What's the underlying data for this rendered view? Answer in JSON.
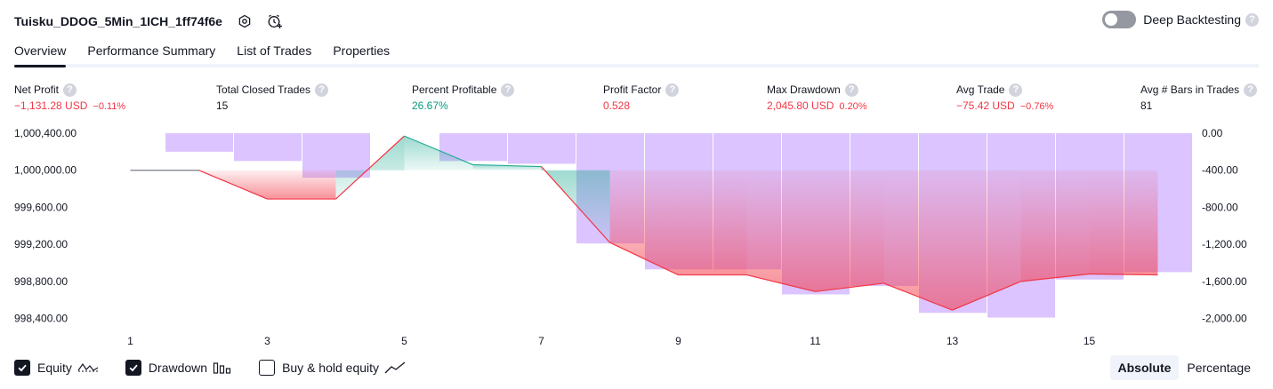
{
  "header": {
    "strategy_name": "Tuisku_DDOG_5Min_1ICH_1ff74f6e",
    "settings_icon": "gear-icon",
    "alert_icon": "alarm-clock-plus-icon"
  },
  "deep_backtesting": {
    "label": "Deep Backtesting",
    "enabled": false
  },
  "tabs": [
    {
      "label": "Overview",
      "active": true
    },
    {
      "label": "Performance Summary",
      "active": false
    },
    {
      "label": "List of Trades",
      "active": false
    },
    {
      "label": "Properties",
      "active": false
    }
  ],
  "metrics": [
    {
      "label": "Net Profit",
      "value": "−1,131.28 USD",
      "pct": "−0.11%",
      "color": "#f23645"
    },
    {
      "label": "Total Closed Trades",
      "value": "15",
      "pct": "",
      "color": "#131722"
    },
    {
      "label": "Percent Profitable",
      "value": "26.67%",
      "pct": "",
      "color": "#089981"
    },
    {
      "label": "Profit Factor",
      "value": "0.528",
      "pct": "",
      "color": "#f23645"
    },
    {
      "label": "Max Drawdown",
      "value": "2,045.80 USD",
      "pct": "0.20%",
      "color": "#f23645"
    },
    {
      "label": "Avg Trade",
      "value": "−75.42 USD",
      "pct": "−0.76%",
      "color": "#f23645"
    },
    {
      "label": "Avg # Bars in Trades",
      "value": "81",
      "pct": "",
      "color": "#131722"
    }
  ],
  "chart_data": {
    "type": "line",
    "x": [
      1,
      2,
      3,
      4,
      5,
      6,
      7,
      8,
      9,
      10,
      11,
      12,
      13,
      14,
      15,
      16
    ],
    "x_tick_labels": [
      "1",
      "3",
      "5",
      "7",
      "9",
      "11",
      "13",
      "15"
    ],
    "y_left_ticks": [
      "1,000,400.00",
      "1,000,000.00",
      "999,600.00",
      "999,200.00",
      "998,800.00",
      "998,400.00"
    ],
    "y_right_ticks": [
      "0.00",
      "-400.00",
      "-800.00",
      "-1,200.00",
      "-1,600.00",
      "-2,000.00"
    ],
    "ylim_left": [
      998300,
      1000400
    ],
    "ylim_right": [
      -2100,
      0
    ],
    "series": [
      {
        "name": "Equity",
        "values": [
          1000000,
          1000000,
          999690,
          999690,
          1000370,
          1000060,
          1000040,
          999220,
          998870,
          998870,
          998690,
          998780,
          998490,
          998800,
          998880,
          998870
        ],
        "color_gain": "#22ab94",
        "color_loss": "#f23645",
        "color_flat": "#787b86"
      },
      {
        "name": "Drawdown",
        "type": "bar",
        "values": [
          0,
          -200,
          -300,
          -480,
          0,
          -300,
          -330,
          -1190,
          -1470,
          -1470,
          -1740,
          -1650,
          -1940,
          -1990,
          -1580,
          -1500
        ],
        "color": "#d1b3ff"
      }
    ],
    "grid": false,
    "legend": "bottom-left"
  },
  "legend": [
    {
      "label": "Equity",
      "checked": true,
      "glyph": "equity-line-icon"
    },
    {
      "label": "Drawdown",
      "checked": true,
      "glyph": "drawdown-bars-icon"
    },
    {
      "label": "Buy & hold equity",
      "checked": false,
      "glyph": "buy-hold-line-icon"
    }
  ],
  "modes": [
    {
      "label": "Absolute",
      "active": true
    },
    {
      "label": "Percentage",
      "active": false
    }
  ]
}
